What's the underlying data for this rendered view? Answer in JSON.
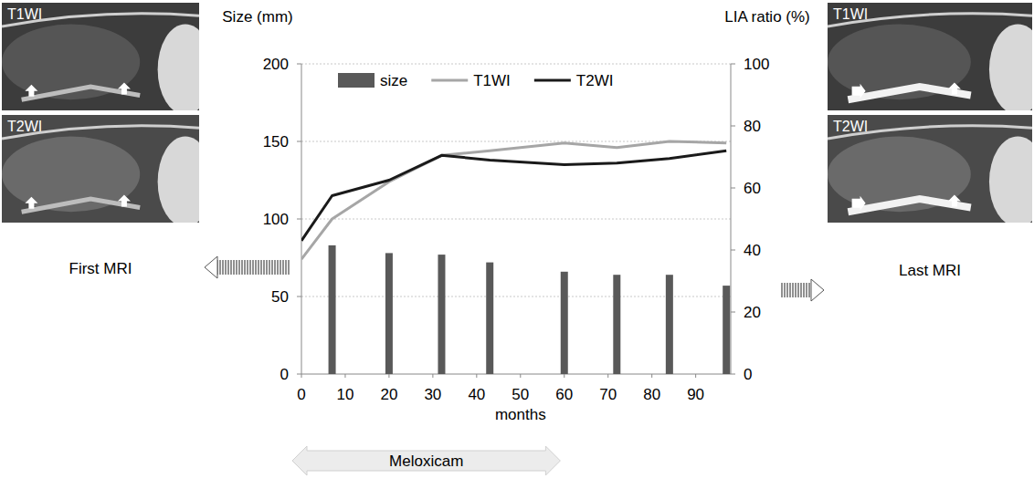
{
  "chart_data": {
    "type": "bar",
    "x": [
      0,
      7,
      20,
      32,
      43,
      60,
      72,
      84,
      97
    ],
    "series": [
      {
        "name": "size",
        "type": "bar",
        "color": "#595959",
        "values": [
          null,
          83,
          78,
          77,
          72,
          66,
          64,
          64,
          57
        ]
      },
      {
        "name": "T1WI",
        "type": "line",
        "axis": "y2",
        "color": "#a6a6a6",
        "values": [
          37,
          50,
          62,
          70.5,
          72,
          74.5,
          73,
          75,
          74.5
        ]
      },
      {
        "name": "T2WI",
        "type": "line",
        "axis": "y2",
        "color": "#1a1a1a",
        "values": [
          43,
          57.5,
          62.5,
          70.5,
          69,
          67.5,
          68,
          69.5,
          72
        ]
      }
    ],
    "y_label": "Size (mm)",
    "y2_label": "LIA ratio (%)",
    "x_label": "months",
    "xlim": [
      0,
      98
    ],
    "xticks": [
      0,
      10,
      20,
      30,
      40,
      50,
      60,
      70,
      80,
      90
    ],
    "ylim": [
      0,
      200
    ],
    "yticks": [
      0,
      50,
      100,
      150,
      200
    ],
    "y2lim": [
      0,
      100
    ],
    "y2ticks": [
      0,
      20,
      40,
      60,
      80,
      100
    ],
    "grid": true,
    "legend": "top",
    "annotations": [
      {
        "text": "Meloxicam",
        "start": 0,
        "end": 57
      }
    ]
  },
  "images": [
    {
      "caption": "First MRI",
      "labels": [
        "T1WI",
        "T2WI"
      ]
    },
    {
      "caption": "Last MRI",
      "labels": [
        "T1WI",
        "T2WI"
      ]
    }
  ]
}
